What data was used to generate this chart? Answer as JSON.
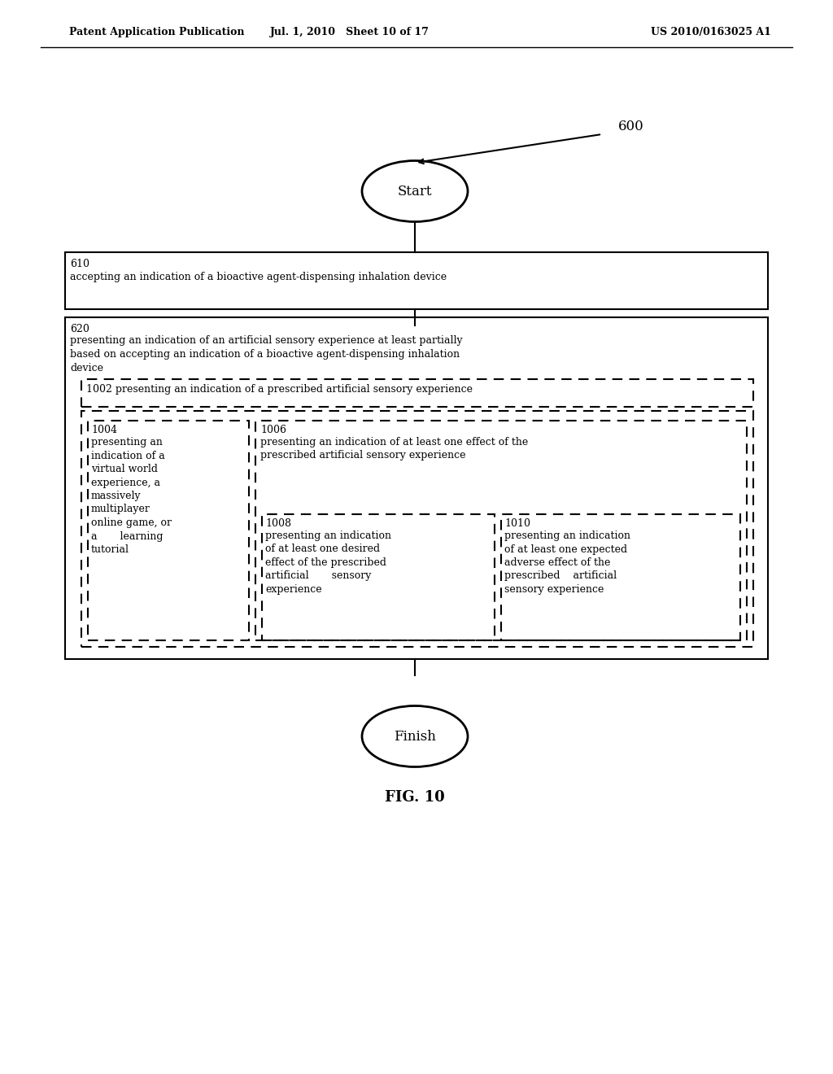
{
  "header_left": "Patent Application Publication",
  "header_mid": "Jul. 1, 2010   Sheet 10 of 17",
  "header_right": "US 2010/0163025 A1",
  "fig_label": "FIG. 10",
  "diagram_label": "600",
  "start_text": "Start",
  "finish_text": "Finish",
  "box610_label": "610",
  "box610_text": "accepting an indication of a bioactive agent-dispensing inhalation device",
  "box620_label": "620",
  "box620_text": "presenting an indication of an artificial sensory experience at least partially\nbased on accepting an indication of a bioactive agent-dispensing inhalation\ndevice",
  "box1002_label": "1002",
  "box1002_text": "presenting an indication of a prescribed artificial sensory experience",
  "box1004_label": "1004",
  "box1004_text": "presenting an\nindication of a\nvirtual world\nexperience, a\nmassively\nmultiplayer\nonline game, or\na       learning\ntutorial",
  "box1006_label": "1006",
  "box1006_text": "presenting an indication of at least one effect of the\nprescribed artificial sensory experience",
  "box1008_label": "1008",
  "box1008_text": "presenting an indication\nof at least one desired\neffect of the prescribed\nartificial       sensory\nexperience",
  "box1010_label": "1010",
  "box1010_text": "presenting an indication\nof at least one expected\nadverse effect of the\nprescribed    artificial\nsensory experience",
  "background_color": "#ffffff",
  "text_color": "#000000",
  "line_color": "#000000"
}
